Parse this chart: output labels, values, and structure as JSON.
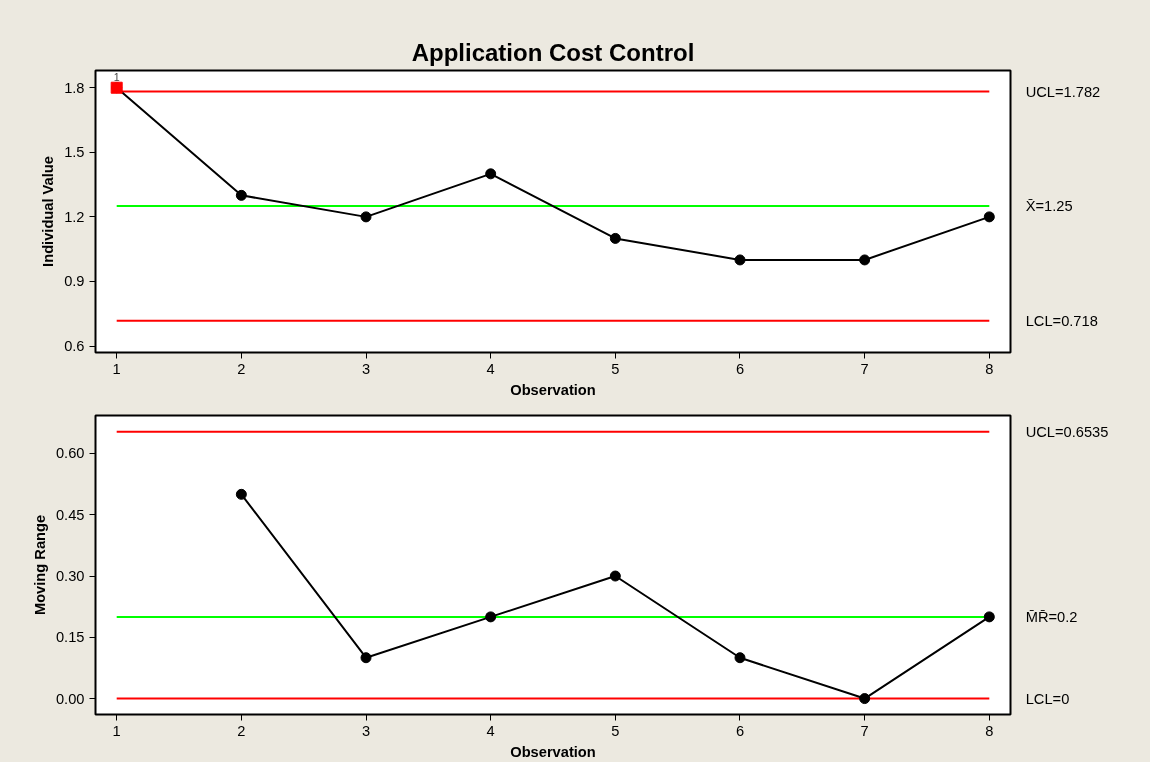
{
  "chart_data": [
    {
      "type": "line",
      "title": "Application Cost Control",
      "xlabel": "Observation",
      "ylabel": "Individual Value",
      "x": [
        1,
        2,
        3,
        4,
        5,
        6,
        7,
        8
      ],
      "series": [
        {
          "color": "#000000",
          "values": [
            1.8,
            1.3,
            1.2,
            1.4,
            1.1,
            1.0,
            1.0,
            1.2
          ]
        },
        {
          "type": "scatter",
          "marker": "square",
          "color": "#ff0000",
          "x": [
            1
          ],
          "values": [
            1.8
          ]
        }
      ],
      "marker": "circle",
      "xlim": [
        0.83,
        8.17
      ],
      "xticks": [
        1,
        2,
        3,
        4,
        5,
        6,
        7,
        8
      ],
      "ylim": [
        0.57,
        1.88
      ],
      "yticks": [
        {
          "value": 0.6,
          "label": "0.6"
        },
        {
          "value": 0.9,
          "label": "0.9"
        },
        {
          "value": 1.2,
          "label": "1.2"
        },
        {
          "value": 1.5,
          "label": "1.5"
        },
        {
          "value": 1.8,
          "label": "1.8"
        }
      ],
      "ref_lines": [
        {
          "axis": "y",
          "value": 1.782,
          "label": "UCL=1.782",
          "color": "#ff0000"
        },
        {
          "axis": "y",
          "value": 1.25,
          "label": "X̄=1.25",
          "color": "#00ff00"
        },
        {
          "axis": "y",
          "value": 0.718,
          "label": "LCL=0.718",
          "color": "#ff0000"
        }
      ],
      "annotations": [
        {
          "text": "1",
          "x": 1,
          "y": 1.8
        }
      ],
      "grid": false
    },
    {
      "type": "line",
      "xlabel": "Observation",
      "ylabel": "Moving Range",
      "series": [
        {
          "color": "#000000",
          "x": [
            2,
            3,
            4,
            5,
            6,
            7,
            8
          ],
          "values": [
            0.5,
            0.1,
            0.2,
            0.3,
            0.1,
            0.0,
            0.2
          ]
        }
      ],
      "marker": "circle",
      "xlim": [
        0.83,
        8.17
      ],
      "xticks": [
        1,
        2,
        3,
        4,
        5,
        6,
        7,
        8
      ],
      "ylim": [
        -0.039,
        0.693
      ],
      "yticks": [
        {
          "value": 0,
          "label": "0.00"
        },
        {
          "value": 0.15,
          "label": "0.15"
        },
        {
          "value": 0.3,
          "label": "0.30"
        },
        {
          "value": 0.45,
          "label": "0.45"
        },
        {
          "value": 0.6,
          "label": "0.60"
        }
      ],
      "ref_lines": [
        {
          "axis": "y",
          "value": 0.6535,
          "label": "UCL=0.6535",
          "color": "#ff0000"
        },
        {
          "axis": "y",
          "value": 0.2,
          "label": "M̄R̄=0.2",
          "color": "#00ff00"
        },
        {
          "axis": "y",
          "value": 0,
          "label": "LCL=0",
          "color": "#ff0000"
        }
      ],
      "grid": false
    }
  ]
}
